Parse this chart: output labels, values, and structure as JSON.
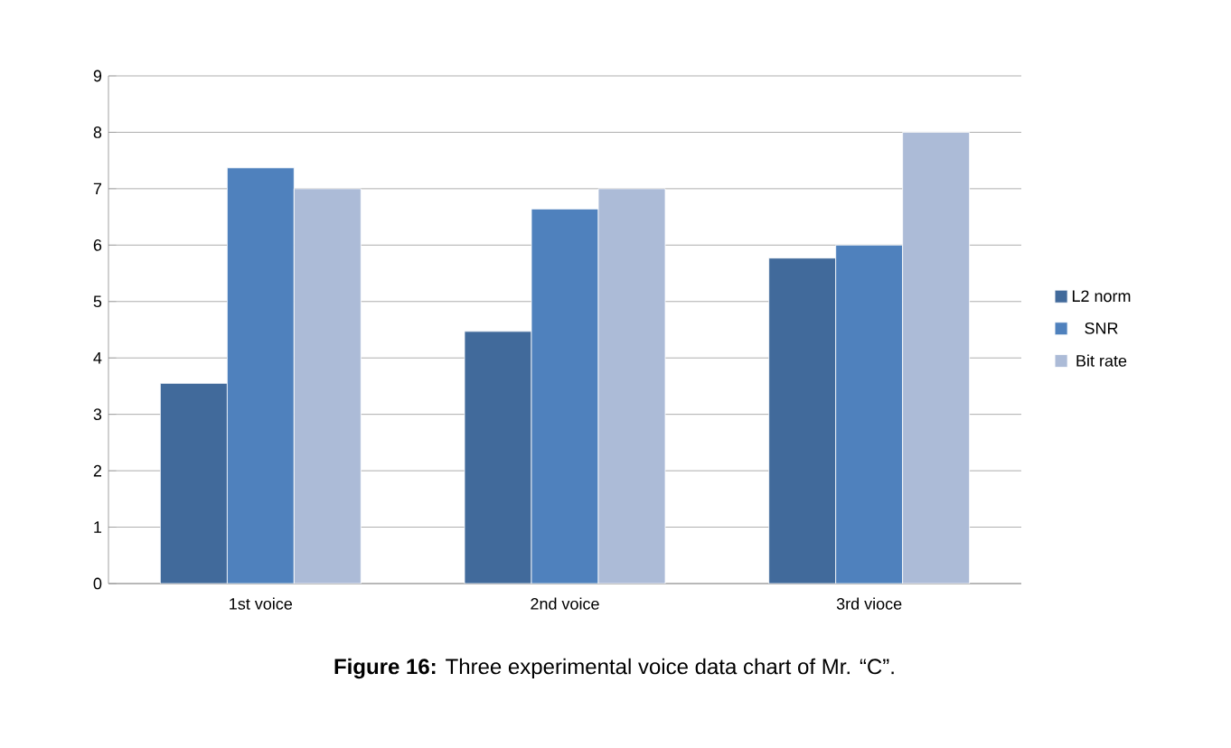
{
  "chart_data": {
    "type": "bar",
    "title": "**Figure 16:** Three experimental voice data chart of Mr. “C”.",
    "categories": [
      "1st voice",
      "2nd voice",
      "3rd vioce"
    ],
    "series": [
      {
        "name": "L2 norm",
        "color": "#416a9b",
        "values": [
          3.55,
          4.47,
          5.77
        ]
      },
      {
        "name": "SNR",
        "color": "#4f81bd",
        "values": [
          7.37,
          6.64,
          6.0
        ]
      },
      {
        "name": "Bit rate",
        "color": "#acbbd7",
        "values": [
          7,
          7,
          8
        ]
      }
    ],
    "ylim": [
      0,
      9
    ],
    "yticks": [
      0,
      1,
      2,
      3,
      4,
      5,
      6,
      7,
      8,
      9
    ],
    "grid": "y",
    "legend": "right"
  }
}
